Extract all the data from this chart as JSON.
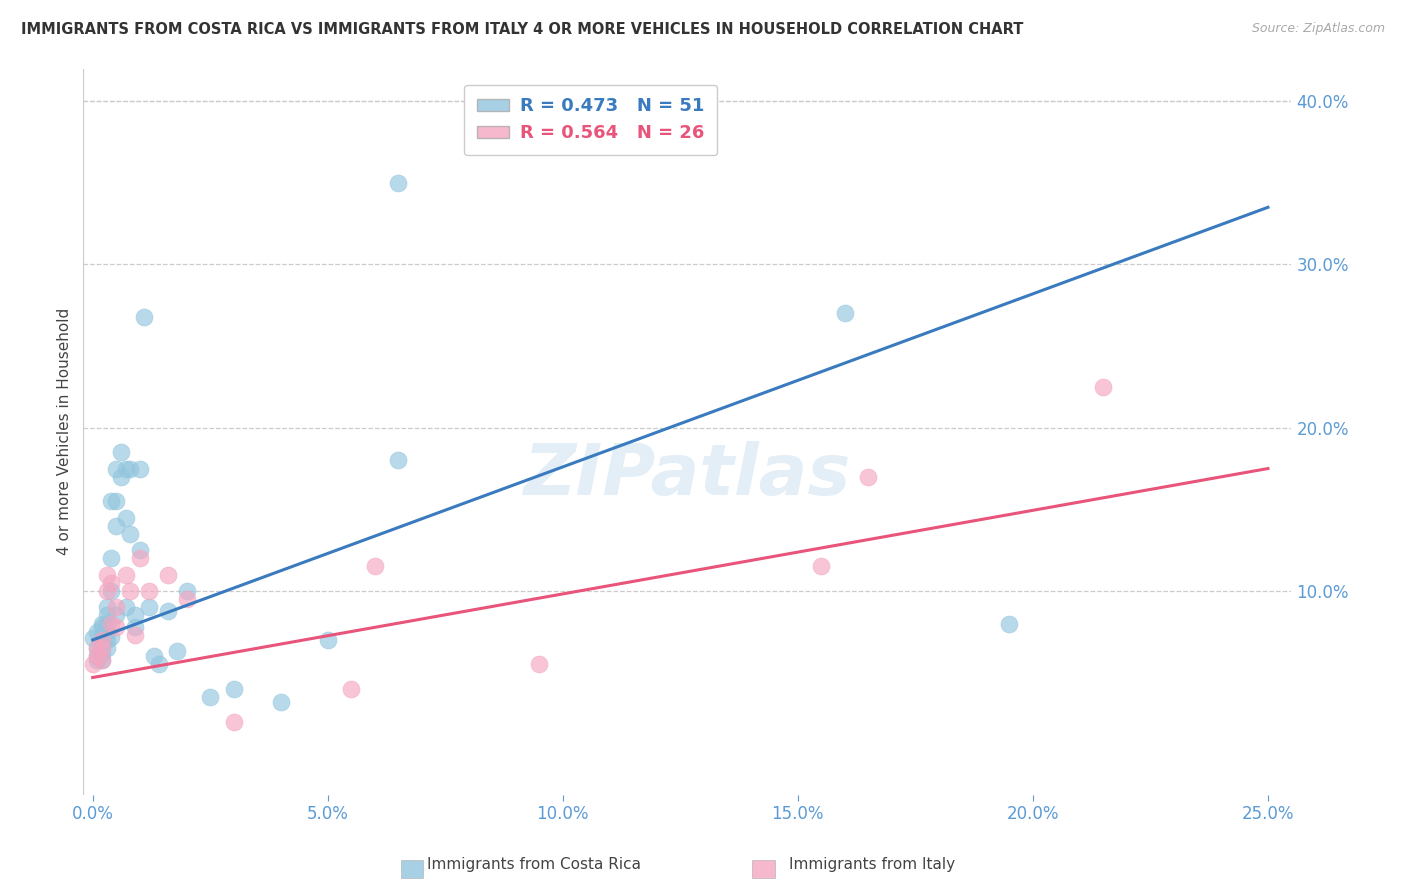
{
  "title": "IMMIGRANTS FROM COSTA RICA VS IMMIGRANTS FROM ITALY 4 OR MORE VEHICLES IN HOUSEHOLD CORRELATION CHART",
  "source": "Source: ZipAtlas.com",
  "ylabel_left": "4 or more Vehicles in Household",
  "legend_cr": "Immigrants from Costa Rica",
  "legend_it": "Immigrants from Italy",
  "R_cr": 0.473,
  "N_cr": 51,
  "R_it": 0.564,
  "N_it": 26,
  "xlim": [
    -0.002,
    0.255
  ],
  "ylim": [
    -0.025,
    0.42
  ],
  "right_yticks": [
    0.1,
    0.2,
    0.3,
    0.4
  ],
  "right_yticklabels": [
    "10.0%",
    "20.0%",
    "30.0%",
    "40.0%"
  ],
  "xticks": [
    0.0,
    0.05,
    0.1,
    0.15,
    0.2,
    0.25
  ],
  "xticklabels": [
    "0.0%",
    "5.0%",
    "10.0%",
    "15.0%",
    "20.0%",
    "25.0%"
  ],
  "cr_color": "#92c5de",
  "it_color": "#f4a6c0",
  "cr_line_color": "#3a7abf",
  "it_line_color": "#e8547a",
  "watermark": "ZIPatlas",
  "cr_line_x0": 0.0,
  "cr_line_y0": 0.07,
  "cr_line_x1": 0.25,
  "cr_line_y1": 0.335,
  "it_line_x0": 0.0,
  "it_line_y0": 0.047,
  "it_line_x1": 0.25,
  "it_line_y1": 0.175,
  "costa_rica_x": [
    0.0,
    0.001,
    0.001,
    0.001,
    0.001,
    0.002,
    0.002,
    0.002,
    0.002,
    0.002,
    0.002,
    0.003,
    0.003,
    0.003,
    0.003,
    0.003,
    0.003,
    0.004,
    0.004,
    0.004,
    0.004,
    0.005,
    0.005,
    0.005,
    0.005,
    0.006,
    0.006,
    0.007,
    0.007,
    0.007,
    0.008,
    0.008,
    0.009,
    0.009,
    0.01,
    0.01,
    0.011,
    0.012,
    0.013,
    0.014,
    0.016,
    0.018,
    0.02,
    0.025,
    0.03,
    0.04,
    0.05,
    0.065,
    0.065,
    0.16,
    0.195
  ],
  "costa_rica_y": [
    0.071,
    0.075,
    0.065,
    0.06,
    0.058,
    0.08,
    0.078,
    0.072,
    0.068,
    0.062,
    0.058,
    0.09,
    0.085,
    0.08,
    0.075,
    0.07,
    0.065,
    0.155,
    0.12,
    0.1,
    0.072,
    0.175,
    0.155,
    0.14,
    0.085,
    0.185,
    0.17,
    0.175,
    0.145,
    0.09,
    0.175,
    0.135,
    0.085,
    0.078,
    0.175,
    0.125,
    0.268,
    0.09,
    0.06,
    0.055,
    0.088,
    0.063,
    0.1,
    0.035,
    0.04,
    0.032,
    0.07,
    0.35,
    0.18,
    0.27,
    0.08
  ],
  "italy_x": [
    0.0,
    0.001,
    0.001,
    0.002,
    0.002,
    0.002,
    0.003,
    0.003,
    0.004,
    0.004,
    0.005,
    0.005,
    0.007,
    0.008,
    0.009,
    0.01,
    0.012,
    0.016,
    0.02,
    0.03,
    0.055,
    0.06,
    0.095,
    0.155,
    0.165,
    0.215
  ],
  "italy_y": [
    0.055,
    0.065,
    0.06,
    0.07,
    0.065,
    0.058,
    0.11,
    0.1,
    0.105,
    0.08,
    0.09,
    0.078,
    0.11,
    0.1,
    0.073,
    0.12,
    0.1,
    0.11,
    0.095,
    0.02,
    0.04,
    0.115,
    0.055,
    0.115,
    0.17,
    0.225
  ]
}
